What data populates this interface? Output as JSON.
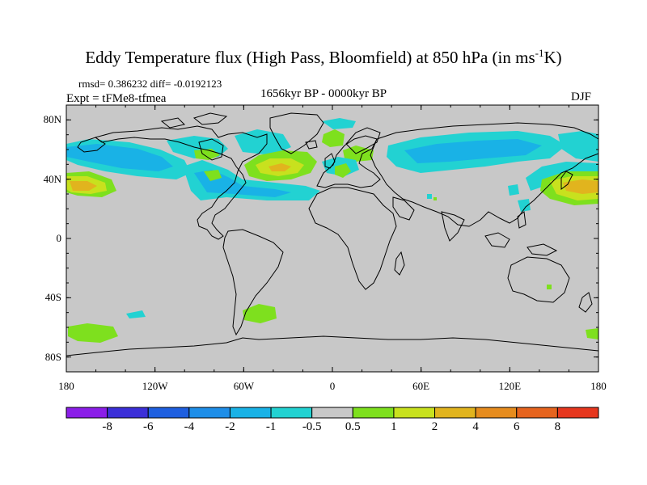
{
  "title": "Eddy Temperature flux (High Pass, Bloomfield) at 850 hPa (in ms",
  "title_sup": "-1",
  "title_end": "K)",
  "stats": "rmsd= 0.386232 diff= -0.0192123",
  "expt": "Expt = tFMe8-tfmea",
  "period": "1656kyr BP - 0000kyr BP",
  "season": "DJF",
  "lat_ticks": [
    {
      "label": "80N",
      "lat": 80
    },
    {
      "label": "40N",
      "lat": 40
    },
    {
      "label": "0",
      "lat": 0
    },
    {
      "label": "40S",
      "lat": -40
    },
    {
      "label": "80S",
      "lat": -80
    }
  ],
  "lon_ticks": [
    {
      "label": "180",
      "lon": -180
    },
    {
      "label": "120W",
      "lon": -120
    },
    {
      "label": "60W",
      "lon": -60
    },
    {
      "label": "0",
      "lon": 0
    },
    {
      "label": "60E",
      "lon": 60
    },
    {
      "label": "120E",
      "lon": 120
    },
    {
      "label": "180",
      "lon": 180
    }
  ],
  "colorbar": {
    "colors": [
      "#8b1ee8",
      "#3b2fd8",
      "#1e5fe0",
      "#1e8ee8",
      "#19b2e6",
      "#22d2d2",
      "#c8c8c8",
      "#7ee01e",
      "#c8e11e",
      "#e1b41e",
      "#e68c1e",
      "#e6641e",
      "#e6371e"
    ],
    "labels": [
      "-8",
      "-6",
      "-4",
      "-2",
      "-1",
      "-0.5",
      "0.5",
      "1",
      "2",
      "4",
      "6",
      "8"
    ]
  },
  "colors": {
    "background_field": "#c8c8c8",
    "coast": "#000000",
    "cyan": "#22d2d2",
    "light_blue": "#19b2e6",
    "green": "#7ee01e",
    "yellow_green": "#c8e11e",
    "orange": "#e1b41e"
  }
}
